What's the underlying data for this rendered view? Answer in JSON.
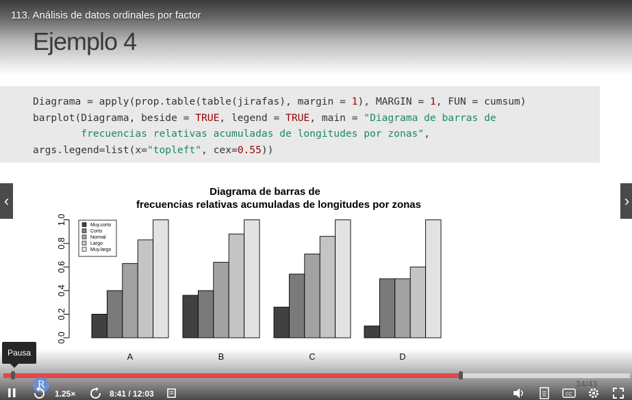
{
  "lesson_title": "113. Análisis de datos ordinales por factor",
  "slide_heading": "Ejemplo 4",
  "code": {
    "line1": {
      "a": "Diagrama = apply(prop.table(table(jirafas), margin = ",
      "n1": "1",
      "b": "), MARGIN = ",
      "n2": "1",
      "c": ", FUN = cumsum)"
    },
    "line2": {
      "a": "barplot(Diagrama, beside = ",
      "k1": "TRUE",
      "b": ", legend = ",
      "k2": "TRUE",
      "c": ", main = ",
      "s1": "\"Diagrama de barras de"
    },
    "line3": {
      "s2": "        frecuencias relativas acumuladas de longitudes por zonas\"",
      "c": ","
    },
    "line4": {
      "a": "args.legend=list(x=",
      "s": "\"topleft\"",
      "b": ", cex=",
      "n": "0.55",
      "c": "))"
    }
  },
  "chart_data": {
    "type": "bar",
    "title": "Diagrama de barras de",
    "subtitle": "frecuencias relativas acumuladas de longitudes por zonas",
    "categories": [
      "A",
      "B",
      "C",
      "D"
    ],
    "ylim": [
      0,
      1
    ],
    "yticks": [
      "0.0",
      "0.2",
      "0.4",
      "0.6",
      "0.8",
      "1.0"
    ],
    "legend_position": "top-left",
    "series": [
      {
        "name": "Muy.corto",
        "color": "#414141",
        "values": [
          0.2,
          0.36,
          0.26,
          0.1
        ]
      },
      {
        "name": "Corto",
        "color": "#7a7a7a",
        "values": [
          0.4,
          0.4,
          0.54,
          0.5
        ]
      },
      {
        "name": "Normal",
        "color": "#a2a2a2",
        "values": [
          0.63,
          0.64,
          0.71,
          0.5
        ]
      },
      {
        "name": "Largo",
        "color": "#c4c4c4",
        "values": [
          0.83,
          0.88,
          0.86,
          0.6
        ]
      },
      {
        "name": "Muy.largo",
        "color": "#e2e2e2",
        "values": [
          1.0,
          1.0,
          1.0,
          1.0
        ]
      }
    ]
  },
  "player": {
    "tooltip": "Pausa",
    "speed": "1.25×",
    "time": "8:41 / 12:03",
    "slide_counter": "34/43",
    "progress_fraction": 0.73,
    "avatar_letter": "R"
  }
}
